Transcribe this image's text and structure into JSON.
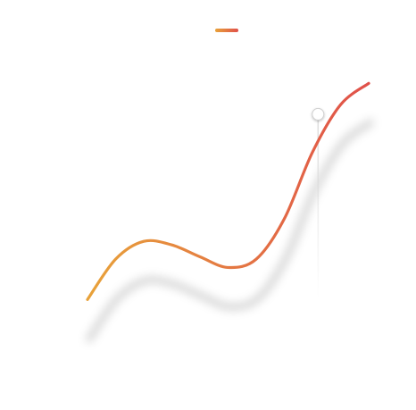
{
  "chart_data": {
    "type": "line",
    "title": "",
    "xlabel": "",
    "ylabel": "",
    "grid": false,
    "legend": "top-center",
    "xlim": [
      0,
      10
    ],
    "ylim": [
      0,
      10
    ],
    "series": [
      {
        "name": "",
        "x": [
          0,
          1,
          2,
          3,
          4,
          5,
          6,
          7,
          8,
          9,
          10
        ],
        "y": [
          0.4,
          2.1,
          2.85,
          2.7,
          2.2,
          1.75,
          2.1,
          3.8,
          6.6,
          8.6,
          9.5
        ]
      }
    ],
    "highlight": {
      "x": 8.2,
      "y": 8.2
    },
    "colors": {
      "gradient_start": "#E8A23A",
      "gradient_end": "#E0504A",
      "marker_fill": "#FFFFFF",
      "marker_stroke": "#D0D0D0",
      "shadow": "#000000"
    }
  }
}
